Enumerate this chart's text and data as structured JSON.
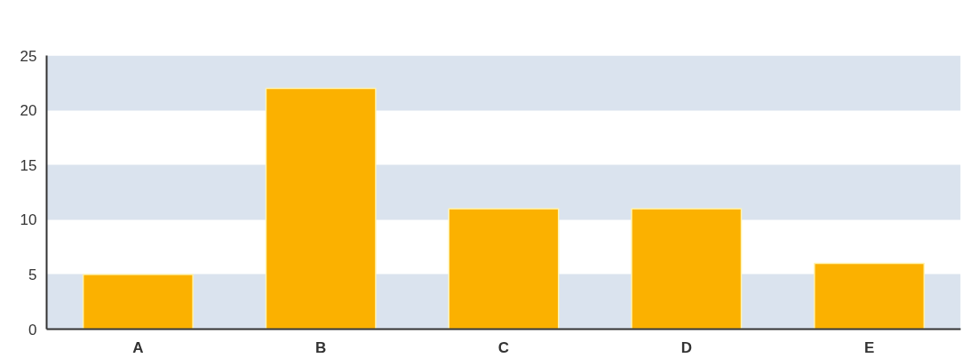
{
  "chart_data": {
    "type": "bar",
    "categories": [
      "A",
      "B",
      "C",
      "D",
      "E"
    ],
    "values": [
      5,
      22,
      11,
      11,
      6
    ],
    "color": "#fbb100",
    "ylim": [
      0,
      25
    ],
    "yticks": [
      0,
      5,
      10,
      15,
      20,
      25
    ],
    "bands": [
      {
        "axis": "y",
        "from": 0,
        "to": 5,
        "color": "#dae3ee"
      },
      {
        "axis": "y",
        "from": 10,
        "to": 15,
        "color": "#dae3ee"
      },
      {
        "axis": "y",
        "from": 20,
        "to": 25,
        "color": "#dae3ee"
      }
    ]
  }
}
